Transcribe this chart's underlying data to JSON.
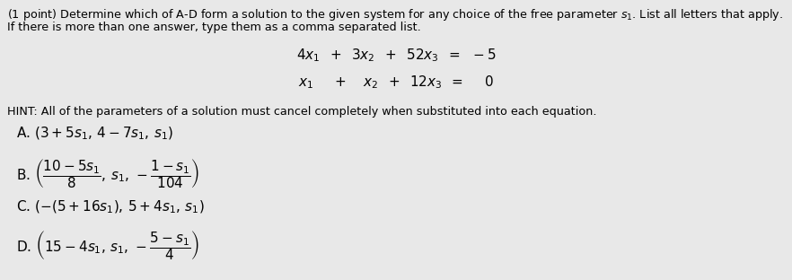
{
  "background_color": "#e8e8e8",
  "text_color": "#000000",
  "figsize": [
    8.82,
    3.12
  ],
  "dpi": 100,
  "fs_body": 9.2,
  "fs_eq": 11.0,
  "fs_hint": 9.2,
  "fs_opt": 11.0,
  "fs_optAC": 11.0,
  "line1": "(1 point) Determine which of A-D form a solution to the given system for any choice of the free parameter $s_1$. List all letters that apply.",
  "line2": "If there is more than one answer, type them as a comma separated list.",
  "hint": "HINT: All of the parameters of a solution must cancel completely when substituted into each equation.",
  "eq1": "$4x_1 \\quad + \\quad 3x_2 \\quad + \\quad 52x_3 \\quad = \\quad -5$",
  "eq2": "$x_1 \\quad + \\quad x_2 \\quad + \\quad 12x_3 \\quad = \\quad 0$"
}
